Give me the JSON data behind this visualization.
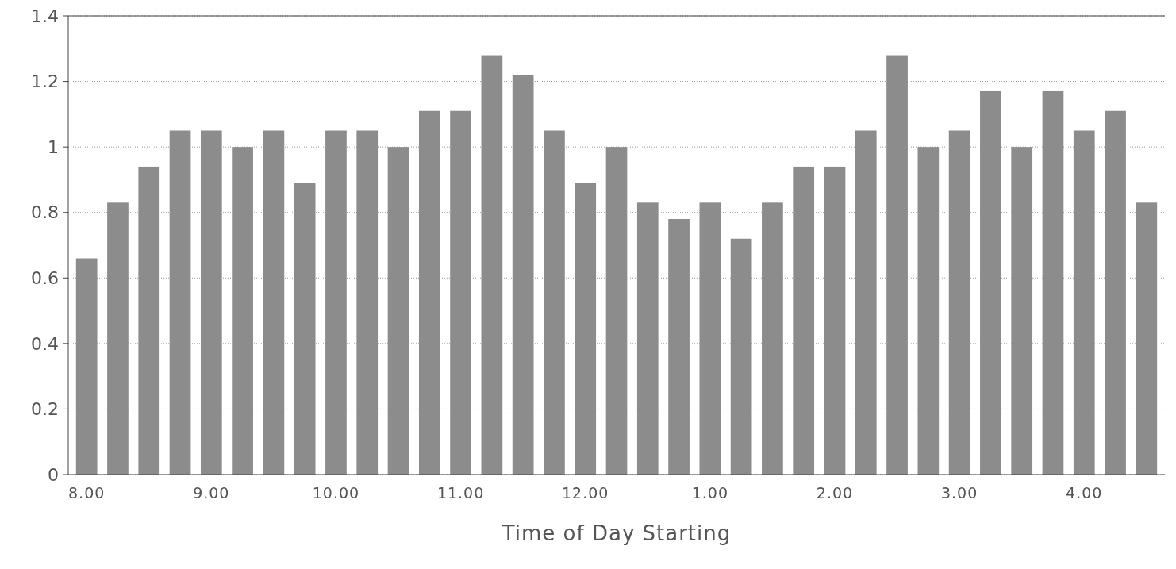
{
  "chart_data": {
    "type": "bar",
    "xlabel": "Time of Day Starting",
    "categories": [
      "8.00",
      null,
      null,
      null,
      "9.00",
      null,
      null,
      null,
      "10.00",
      null,
      null,
      null,
      "11.00",
      null,
      null,
      null,
      "12.00",
      null,
      null,
      null,
      "1.00",
      null,
      null,
      null,
      "2.00",
      null,
      null,
      null,
      "3.00",
      null,
      null,
      null,
      "4.00",
      null,
      null
    ],
    "values": [
      0.66,
      0.83,
      0.94,
      1.05,
      1.05,
      1.0,
      1.05,
      0.89,
      1.05,
      1.05,
      1.0,
      1.11,
      1.11,
      1.28,
      1.22,
      1.05,
      0.89,
      1.0,
      0.83,
      0.78,
      0.83,
      0.72,
      0.83,
      0.94,
      0.94,
      1.05,
      1.28,
      1.0,
      1.05,
      1.17,
      1.0,
      1.17,
      1.05,
      1.11,
      0.83
    ],
    "color": "#8c8c8c",
    "ylim": [
      0,
      1.4
    ],
    "yticks": [
      0,
      0.2,
      0.4,
      0.6,
      0.8,
      1,
      1.2,
      1.4
    ],
    "grid": "y"
  }
}
